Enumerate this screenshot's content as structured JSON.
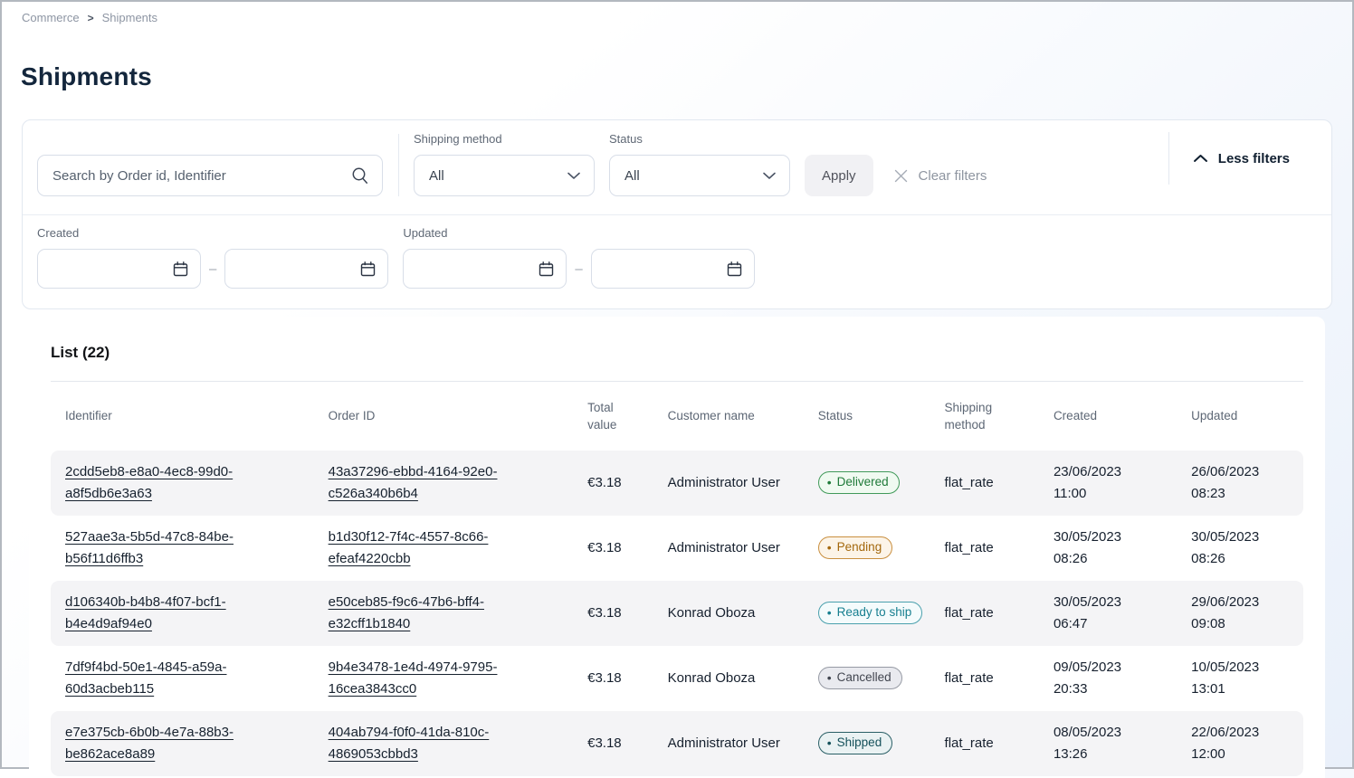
{
  "breadcrumb": {
    "items": [
      "Commerce",
      "Shipments"
    ],
    "separator": ">"
  },
  "page": {
    "title": "Shipments"
  },
  "filters": {
    "search": {
      "placeholder": "Search by Order id, Identifier",
      "value": ""
    },
    "shipping_method": {
      "label": "Shipping method",
      "value": "All"
    },
    "status": {
      "label": "Status",
      "value": "All"
    },
    "apply_label": "Apply",
    "clear_label": "Clear filters",
    "toggle_label": "Less filters",
    "created": {
      "label": "Created",
      "from": "",
      "to": ""
    },
    "updated": {
      "label": "Updated",
      "from": "",
      "to": ""
    },
    "range_separator": "–"
  },
  "list": {
    "title": "List (22)",
    "count": 22,
    "badge_dot": "•",
    "columns": [
      "Identifier",
      "Order ID",
      "Total value",
      "Customer name",
      "Status",
      "Shipping method",
      "Created",
      "Updated"
    ],
    "rows": [
      {
        "identifier": "2cdd5eb8-e8a0-4ec8-99d0-a8f5db6e3a63",
        "order_id": "43a37296-ebbd-4164-92e0-c526a340b6b4",
        "total_value": "€3.18",
        "customer_name": "Administrator User",
        "status": {
          "label": "Delivered",
          "key": "delivered"
        },
        "shipping_method": "flat_rate",
        "created": {
          "date": "23/06/2023",
          "time": "11:00"
        },
        "updated": {
          "date": "26/06/2023",
          "time": "08:23"
        }
      },
      {
        "identifier": "527aae3a-5b5d-47c8-84be-b56f11d6ffb3",
        "order_id": "b1d30f12-7f4c-4557-8c66-efeaf4220cbb",
        "total_value": "€3.18",
        "customer_name": "Administrator User",
        "status": {
          "label": "Pending",
          "key": "pending"
        },
        "shipping_method": "flat_rate",
        "created": {
          "date": "30/05/2023",
          "time": "08:26"
        },
        "updated": {
          "date": "30/05/2023",
          "time": "08:26"
        }
      },
      {
        "identifier": "d106340b-b4b8-4f07-bcf1-b4e4d9af94e0",
        "order_id": "e50ceb85-f9c6-47b6-bff4-e32cff1b1840",
        "total_value": "€3.18",
        "customer_name": "Konrad Oboza",
        "status": {
          "label": "Ready to ship",
          "key": "ready"
        },
        "shipping_method": "flat_rate",
        "created": {
          "date": "30/05/2023",
          "time": "06:47"
        },
        "updated": {
          "date": "29/06/2023",
          "time": "09:08"
        }
      },
      {
        "identifier": "7df9f4bd-50e1-4845-a59a-60d3acbeb115",
        "order_id": "9b4e3478-1e4d-4974-9795-16cea3843cc0",
        "total_value": "€3.18",
        "customer_name": "Konrad Oboza",
        "status": {
          "label": "Cancelled",
          "key": "cancelled"
        },
        "shipping_method": "flat_rate",
        "created": {
          "date": "09/05/2023",
          "time": "20:33"
        },
        "updated": {
          "date": "10/05/2023",
          "time": "13:01"
        }
      },
      {
        "identifier": "e7e375cb-6b0b-4e7a-88b3-be862ace8a89",
        "order_id": "404ab794-f0f0-41da-810c-4869053cbbd3",
        "total_value": "€3.18",
        "customer_name": "Administrator User",
        "status": {
          "label": "Shipped",
          "key": "shipped"
        },
        "shipping_method": "flat_rate",
        "created": {
          "date": "08/05/2023",
          "time": "13:26"
        },
        "updated": {
          "date": "22/06/2023",
          "time": "12:00"
        }
      }
    ]
  },
  "colors": {
    "title_text": "#13263c",
    "status_delivered": "#1f7a39",
    "status_pending": "#a4680d",
    "status_ready_to_ship": "#177f90",
    "status_cancelled": "#41454f",
    "status_shipped": "#14505a",
    "row_stripe": "#f4f4f6",
    "card_border": "#e2e8f0"
  }
}
